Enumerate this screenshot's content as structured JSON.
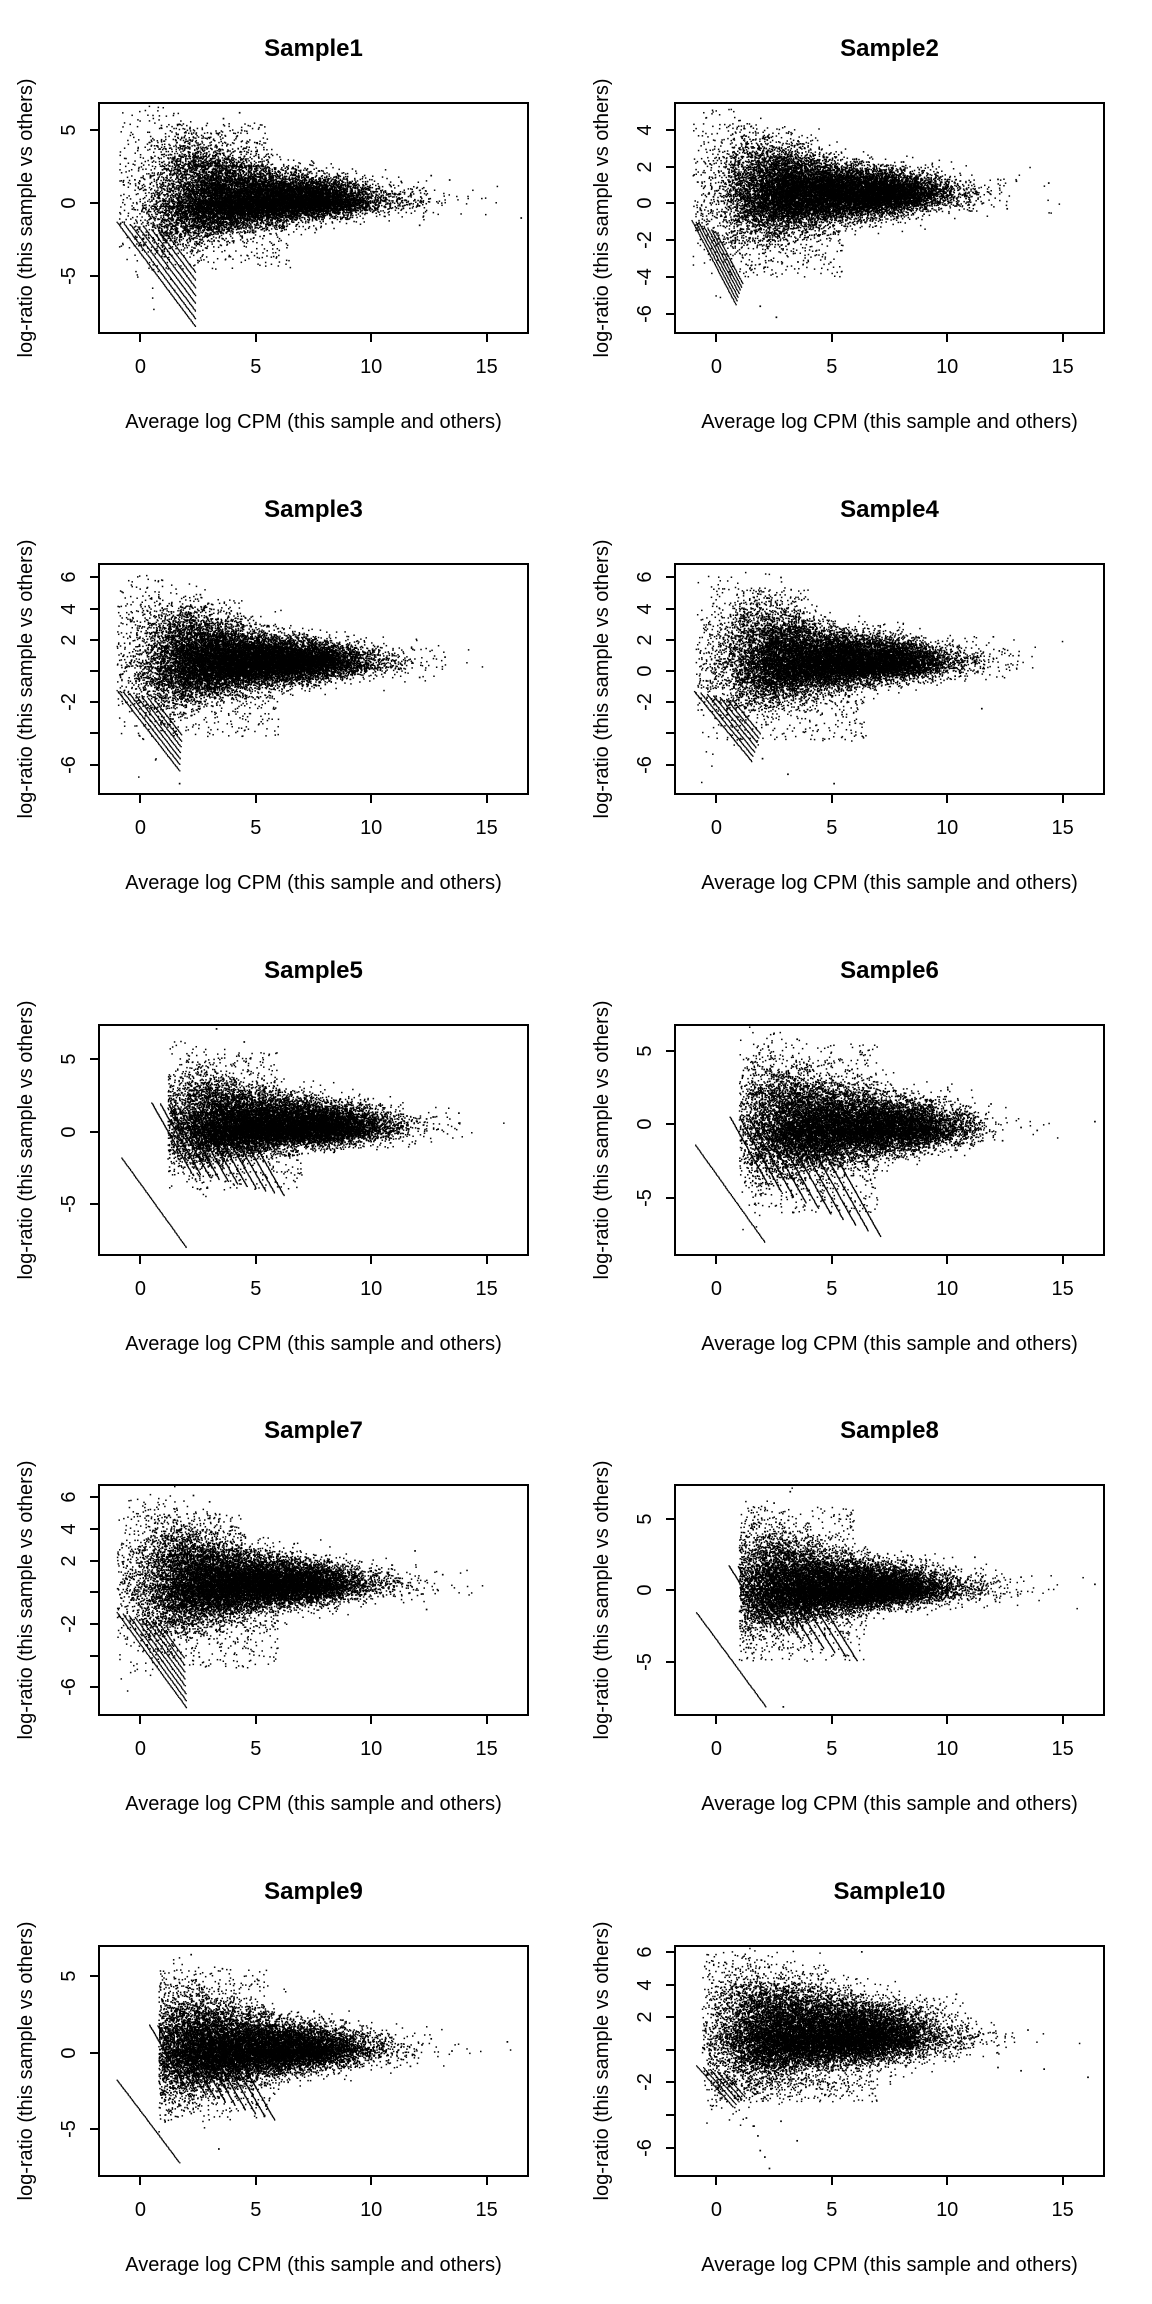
{
  "page": {
    "background": "#ffffff",
    "foreground": "#000000",
    "point_color": "#000000"
  },
  "shared": {
    "xlabel": "Average log CPM (this sample and others)",
    "ylabel": "log-ratio (this sample vs others)",
    "xticks": [
      0,
      5,
      10,
      15
    ],
    "xlim": [
      -1.75,
      16.75
    ]
  },
  "chart_data": [
    {
      "type": "scatter",
      "title": "Sample1",
      "xlabel": "Average log CPM (this sample and others)",
      "ylabel": "log-ratio (this sample vs others)",
      "xticks": [
        0,
        5,
        10,
        15
      ],
      "xlim": [
        -1.75,
        16.75
      ],
      "ylim": [
        -8.8,
        6.8
      ],
      "yticks": [
        {
          "v": 5,
          "label": "5"
        },
        {
          "v": 0,
          "label": "0"
        },
        {
          "v": -5,
          "label": "-5"
        }
      ],
      "cloud": {
        "seed": 11,
        "n": 15000,
        "xmean": 5.2,
        "center": 0.2,
        "sd0": 1.9,
        "sdscale": 3.3,
        "sdbase": 0.42,
        "upskew": 1.35,
        "xmin": -0.9,
        "xmax": 11.8,
        "tail_n": 80
      },
      "wing": [
        350,
        1.5,
        5.5,
        2.5,
        5.5
      ],
      "drop": [
        250,
        0.5,
        6.5,
        -1.5,
        -4.5
      ],
      "streaks": {
        "style": "fan",
        "n": 8,
        "x0": -1.0,
        "dx": 0.3,
        "y0": -1.3,
        "dy": -0.1,
        "slope": -2.1,
        "len0": 3.4,
        "dlen": -0.3,
        "step": 0.03
      },
      "outliers": [
        [
          13.4,
          1.6
        ],
        [
          12.6,
          1.9
        ],
        [
          16.5,
          -1.0
        ],
        [
          11.3,
          1.5
        ],
        [
          12.1,
          -1.5
        ],
        [
          4.3,
          6.2
        ],
        [
          3.6,
          5.8
        ],
        [
          12.5,
          0.3
        ]
      ]
    },
    {
      "type": "scatter",
      "title": "Sample2",
      "xlabel": "Average log CPM (this sample and others)",
      "ylabel": "log-ratio (this sample vs others)",
      "xticks": [
        0,
        5,
        10,
        15
      ],
      "xlim": [
        -1.75,
        16.75
      ],
      "ylim": [
        -7.0,
        5.4
      ],
      "yticks": [
        {
          "v": 4,
          "label": "4"
        },
        {
          "v": 2,
          "label": "2"
        },
        {
          "v": 0,
          "label": "0"
        },
        {
          "v": -2,
          "label": "-2"
        },
        {
          "v": -4,
          "label": "-4"
        },
        {
          "v": -6,
          "label": "-6"
        }
      ],
      "cloud": {
        "seed": 22,
        "n": 16000,
        "xmean": 5.0,
        "center": 0.55,
        "sd0": 1.5,
        "sdscale": 3.6,
        "sdbase": 0.38,
        "upskew": 1.1,
        "xmin": -1.0,
        "xmax": 11.0,
        "tail_n": 80
      },
      "wing": [
        150,
        1.0,
        4.5,
        2.0,
        4.2
      ],
      "drop": [
        220,
        0.3,
        5.5,
        -1.5,
        -4.0
      ],
      "streaks": {
        "style": "fan",
        "n": 7,
        "x0": -1.05,
        "dx": 0.17,
        "y0": -0.95,
        "dy": -0.1,
        "slope": -2.4,
        "len0": 1.9,
        "dlen": -0.12,
        "step": 0.025
      },
      "outliers": [
        [
          12.2,
          1.3
        ],
        [
          13.0,
          1.2
        ],
        [
          14.4,
          1.1
        ],
        [
          17.0,
          0.9
        ],
        [
          11.8,
          0.6
        ],
        [
          12.6,
          -0.3
        ],
        [
          2.6,
          -6.2
        ],
        [
          1.9,
          -5.6
        ]
      ]
    },
    {
      "type": "scatter",
      "title": "Sample3",
      "xlabel": "Average log CPM (this sample and others)",
      "ylabel": "log-ratio (this sample vs others)",
      "xticks": [
        0,
        5,
        10,
        15
      ],
      "xlim": [
        -1.75,
        16.75
      ],
      "ylim": [
        -7.8,
        6.8
      ],
      "yticks": [
        {
          "v": 6,
          "label": "6"
        },
        {
          "v": 4,
          "label": "4"
        },
        {
          "v": 2,
          "label": "2"
        },
        {
          "v": 0,
          "label": ""
        },
        {
          "v": -2,
          "label": "-2"
        },
        {
          "v": -4,
          "label": ""
        },
        {
          "v": -6,
          "label": "-6"
        }
      ],
      "cloud": {
        "seed": 33,
        "n": 16000,
        "xmean": 4.8,
        "center": 0.6,
        "sd0": 1.6,
        "sdscale": 3.5,
        "sdbase": 0.4,
        "upskew": 1.2,
        "xmin": -1.0,
        "xmax": 11.2,
        "tail_n": 70
      },
      "wing": [
        200,
        1.0,
        4.5,
        2.2,
        4.6
      ],
      "drop": [
        220,
        0.3,
        6.0,
        -1.5,
        -4.2
      ],
      "streaks": {
        "style": "fan",
        "n": 7,
        "x0": -1.0,
        "dx": 0.27,
        "y0": -1.25,
        "dy": -0.1,
        "slope": -1.9,
        "len0": 2.7,
        "dlen": -0.25,
        "step": 0.03
      },
      "outliers": [
        [
          13.2,
          0.9
        ],
        [
          16.8,
          1.1
        ],
        [
          12.1,
          -0.4
        ],
        [
          1.7,
          -7.2
        ],
        [
          11.8,
          1.4
        ],
        [
          2.6,
          4.9
        ]
      ]
    },
    {
      "type": "scatter",
      "title": "Sample4",
      "xlabel": "Average log CPM (this sample and others)",
      "ylabel": "log-ratio (this sample vs others)",
      "xticks": [
        0,
        5,
        10,
        15
      ],
      "xlim": [
        -1.75,
        16.75
      ],
      "ylim": [
        -7.8,
        6.8
      ],
      "yticks": [
        {
          "v": 6,
          "label": "6"
        },
        {
          "v": 4,
          "label": "4"
        },
        {
          "v": 2,
          "label": "2"
        },
        {
          "v": 0,
          "label": "0"
        },
        {
          "v": -2,
          "label": "-2"
        },
        {
          "v": -4,
          "label": ""
        },
        {
          "v": -6,
          "label": "-6"
        }
      ],
      "cloud": {
        "seed": 44,
        "n": 15000,
        "xmean": 5.0,
        "center": 0.6,
        "sd0": 1.7,
        "sdscale": 3.5,
        "sdbase": 0.42,
        "upskew": 1.25,
        "xmin": -0.9,
        "xmax": 11.4,
        "tail_n": 70
      },
      "wing": [
        220,
        1.0,
        4.0,
        2.5,
        5.2
      ],
      "drop": [
        260,
        0.4,
        6.5,
        -1.5,
        -4.5
      ],
      "streaks": {
        "style": "fan",
        "n": 7,
        "x0": -0.95,
        "dx": 0.28,
        "y0": -1.3,
        "dy": -0.1,
        "slope": -1.8,
        "len0": 2.5,
        "dlen": -0.22,
        "step": 0.03
      },
      "outliers": [
        [
          13.1,
          1.0
        ],
        [
          17.4,
          0.7
        ],
        [
          12.0,
          2.2
        ],
        [
          3.1,
          -6.6
        ],
        [
          5.1,
          -7.2
        ],
        [
          2.0,
          -5.6
        ],
        [
          2.8,
          6.0
        ],
        [
          11.5,
          -2.4
        ]
      ]
    },
    {
      "type": "scatter",
      "title": "Sample5",
      "xlabel": "Average log CPM (this sample and others)",
      "ylabel": "log-ratio (this sample vs others)",
      "xticks": [
        0,
        5,
        10,
        15
      ],
      "xlim": [
        -1.75,
        16.75
      ],
      "ylim": [
        -8.4,
        7.3
      ],
      "yticks": [
        {
          "v": 5,
          "label": "5"
        },
        {
          "v": 0,
          "label": "0"
        },
        {
          "v": -5,
          "label": "-5"
        }
      ],
      "cloud": {
        "seed": 55,
        "n": 15000,
        "xmean": 5.8,
        "center": 0.4,
        "sd0": 1.8,
        "sdscale": 3.8,
        "sdbase": 0.42,
        "upskew": 1.3,
        "xmin": 1.2,
        "xmax": 11.6,
        "tail_n": 80
      },
      "wing": [
        200,
        2.0,
        6.0,
        2.5,
        5.5
      ],
      "drop": [
        150,
        2.0,
        7.0,
        -1.5,
        -4.0
      ],
      "streaks": {
        "style": "comb",
        "n": 11,
        "x0": 0.5,
        "dx": 0.37,
        "y0": 2.0,
        "dy": -0.07,
        "slope": -2.8,
        "endy0": -2.8,
        "dendy": -0.16,
        "step": 0.055,
        "longline": {
          "x0": -0.8,
          "y0": -1.8,
          "slope": -2.2,
          "len": 2.8
        }
      },
      "outliers": [
        [
          13.8,
          1.3
        ],
        [
          17.5,
          1.5
        ],
        [
          12.4,
          0.9
        ],
        [
          3.3,
          7.1
        ],
        [
          4.5,
          6.2
        ],
        [
          11.9,
          -0.8
        ],
        [
          12.9,
          0.2
        ]
      ]
    },
    {
      "type": "scatter",
      "title": "Sample6",
      "xlabel": "Average log CPM (this sample and others)",
      "ylabel": "log-ratio (this sample vs others)",
      "xticks": [
        0,
        5,
        10,
        15
      ],
      "xlim": [
        -1.75,
        16.75
      ],
      "ylim": [
        -8.8,
        6.7
      ],
      "yticks": [
        {
          "v": 5,
          "label": "5"
        },
        {
          "v": 0,
          "label": "0"
        },
        {
          "v": -5,
          "label": "-5"
        }
      ],
      "cloud": {
        "seed": 66,
        "n": 14000,
        "xmean": 5.8,
        "center": -0.2,
        "sd0": 2.2,
        "sdscale": 4.2,
        "sdbase": 0.5,
        "upskew": 1.2,
        "xmin": 1.0,
        "xmax": 11.3,
        "tail_n": 70
      },
      "wing": [
        300,
        1.5,
        7.0,
        2.0,
        5.5
      ],
      "drop": [
        400,
        1.5,
        7.0,
        -2.0,
        -6.0
      ],
      "streaks": {
        "style": "comb",
        "n": 10,
        "x0": 0.6,
        "dx": 0.42,
        "y0": 0.5,
        "dy": -0.05,
        "slope": -2.8,
        "endy0": -4.2,
        "dendy": -0.38,
        "step": 0.055,
        "longline": {
          "x0": -0.9,
          "y0": -1.4,
          "slope": -2.2,
          "len": 3.0
        }
      },
      "outliers": [
        [
          13.9,
          -0.4
        ],
        [
          16.4,
          0.2
        ],
        [
          11.9,
          1.4
        ],
        [
          12.4,
          -1.1
        ],
        [
          2.5,
          6.2
        ],
        [
          3.5,
          5.8
        ],
        [
          13.2,
          -0.2
        ]
      ]
    },
    {
      "type": "scatter",
      "title": "Sample7",
      "xlabel": "Average log CPM (this sample and others)",
      "ylabel": "log-ratio (this sample vs others)",
      "xticks": [
        0,
        5,
        10,
        15
      ],
      "xlim": [
        -1.75,
        16.75
      ],
      "ylim": [
        -7.7,
        6.7
      ],
      "yticks": [
        {
          "v": 6,
          "label": "6"
        },
        {
          "v": 4,
          "label": "4"
        },
        {
          "v": 2,
          "label": "2"
        },
        {
          "v": 0,
          "label": ""
        },
        {
          "v": -2,
          "label": "-2"
        },
        {
          "v": -4,
          "label": ""
        },
        {
          "v": -6,
          "label": "-6"
        }
      ],
      "cloud": {
        "seed": 77,
        "n": 16000,
        "xmean": 4.6,
        "center": 0.5,
        "sd0": 1.7,
        "sdscale": 3.5,
        "sdbase": 0.4,
        "upskew": 1.2,
        "xmin": -1.0,
        "xmax": 11.2,
        "tail_n": 70
      },
      "wing": [
        220,
        1.0,
        4.5,
        2.2,
        5.0
      ],
      "drop": [
        260,
        0.4,
        6.0,
        -1.8,
        -4.8
      ],
      "streaks": {
        "style": "fan",
        "n": 8,
        "x0": -1.0,
        "dx": 0.26,
        "y0": -1.3,
        "dy": -0.1,
        "slope": -2.0,
        "len0": 3.0,
        "dlen": -0.27,
        "step": 0.03
      },
      "outliers": [
        [
          13.1,
          1.1
        ],
        [
          16.8,
          1.0
        ],
        [
          11.9,
          2.6
        ],
        [
          12.4,
          -1.1
        ],
        [
          2.3,
          6.1
        ],
        [
          3.0,
          5.7
        ],
        [
          12.9,
          0.1
        ]
      ]
    },
    {
      "type": "scatter",
      "title": "Sample8",
      "xlabel": "Average log CPM (this sample and others)",
      "ylabel": "log-ratio (this sample vs others)",
      "xticks": [
        0,
        5,
        10,
        15
      ],
      "xlim": [
        -1.75,
        16.75
      ],
      "ylim": [
        -8.7,
        7.3
      ],
      "yticks": [
        {
          "v": 5,
          "label": "5"
        },
        {
          "v": 0,
          "label": "0"
        },
        {
          "v": -5,
          "label": "-5"
        }
      ],
      "cloud": {
        "seed": 88,
        "n": 15000,
        "xmean": 5.2,
        "center": 0.15,
        "sd0": 1.8,
        "sdscale": 3.6,
        "sdbase": 0.42,
        "upskew": 1.3,
        "xmin": 1.0,
        "xmax": 11.6,
        "tail_n": 80
      },
      "wing": [
        250,
        1.5,
        6.0,
        2.5,
        5.8
      ],
      "drop": [
        260,
        1.0,
        6.5,
        -1.5,
        -5.0
      ],
      "streaks": {
        "style": "comb",
        "n": 9,
        "x0": 0.55,
        "dx": 0.4,
        "y0": 1.7,
        "dy": -0.07,
        "slope": -2.6,
        "endy0": -2.6,
        "dendy": -0.3,
        "step": 0.055,
        "longline": {
          "x0": -0.85,
          "y0": -1.6,
          "slope": -2.2,
          "len": 3.0
        }
      },
      "outliers": [
        [
          13.2,
          0.9
        ],
        [
          16.4,
          0.4
        ],
        [
          11.2,
          2.3
        ],
        [
          3.2,
          6.9
        ],
        [
          2.5,
          6.1
        ],
        [
          12.1,
          -0.8
        ],
        [
          2.9,
          -8.2
        ]
      ]
    },
    {
      "type": "scatter",
      "title": "Sample9",
      "xlabel": "Average log CPM (this sample and others)",
      "ylabel": "log-ratio (this sample vs others)",
      "xticks": [
        0,
        5,
        10,
        15
      ],
      "xlim": [
        -1.75,
        16.75
      ],
      "ylim": [
        -8.0,
        6.9
      ],
      "yticks": [
        {
          "v": 5,
          "label": "5"
        },
        {
          "v": 0,
          "label": "0"
        },
        {
          "v": -5,
          "label": "-5"
        }
      ],
      "cloud": {
        "seed": 99,
        "n": 15000,
        "xmean": 4.8,
        "center": 0.2,
        "sd0": 1.8,
        "sdscale": 3.6,
        "sdbase": 0.42,
        "upskew": 1.25,
        "xmin": 0.8,
        "xmax": 11.0,
        "tail_n": 80
      },
      "wing": [
        200,
        1.5,
        5.5,
        2.5,
        5.5
      ],
      "drop": [
        240,
        0.8,
        6.0,
        -1.5,
        -4.5
      ],
      "streaks": {
        "style": "comb",
        "n": 10,
        "x0": 0.4,
        "dx": 0.36,
        "y0": 1.8,
        "dy": -0.06,
        "slope": -2.6,
        "endy0": -2.3,
        "dendy": -0.24,
        "step": 0.055,
        "longline": {
          "x0": -1.0,
          "y0": -1.8,
          "slope": -2.0,
          "len": 2.7
        }
      },
      "outliers": [
        [
          12.6,
          0.9
        ],
        [
          15.9,
          0.7
        ],
        [
          13.5,
          0.1
        ],
        [
          11.7,
          -0.9
        ],
        [
          2.2,
          6.4
        ],
        [
          3.4,
          -6.3
        ],
        [
          12.2,
          0.5
        ]
      ]
    },
    {
      "type": "scatter",
      "title": "Sample10",
      "xlabel": "Average log CPM (this sample and others)",
      "ylabel": "log-ratio (this sample vs others)",
      "xticks": [
        0,
        5,
        10,
        15
      ],
      "xlim": [
        -1.75,
        16.75
      ],
      "ylim": [
        -7.7,
        6.3
      ],
      "yticks": [
        {
          "v": 6,
          "label": "6"
        },
        {
          "v": 4,
          "label": "4"
        },
        {
          "v": 2,
          "label": "2"
        },
        {
          "v": 0,
          "label": ""
        },
        {
          "v": -2,
          "label": "-2"
        },
        {
          "v": -4,
          "label": ""
        },
        {
          "v": -6,
          "label": "-6"
        }
      ],
      "cloud": {
        "seed": 110,
        "n": 16000,
        "xmean": 4.6,
        "center": 0.85,
        "sd0": 1.3,
        "sdscale": 4.5,
        "sdbase": 0.5,
        "upskew": 1.35,
        "xmin": -0.6,
        "xmax": 10.8,
        "tail_n": 90
      },
      "wing": [
        150,
        1.0,
        5.0,
        2.6,
        3.9
      ],
      "drop": [
        260,
        0.0,
        7.0,
        -1.8,
        -3.2
      ],
      "streaks": {
        "style": "fan",
        "n": 5,
        "x0": -0.85,
        "dx": 0.3,
        "y0": -1.0,
        "dy": -0.12,
        "slope": -1.6,
        "len0": 1.6,
        "dlen": -0.18,
        "step": 0.035
      },
      "outliers": [
        [
          13.5,
          1.2
        ],
        [
          16.1,
          -1.7
        ],
        [
          12.2,
          -1.1
        ],
        [
          13.2,
          -1.3
        ],
        [
          6.3,
          6.0
        ],
        [
          10.4,
          3.4
        ],
        [
          1.3,
          -4.2
        ],
        [
          1.6,
          -4.7
        ],
        [
          1.8,
          -5.3
        ],
        [
          1.9,
          -6.2
        ],
        [
          2.1,
          -6.6
        ],
        [
          2.3,
          -7.3
        ],
        [
          3.5,
          -5.6
        ],
        [
          2.8,
          -4.4
        ],
        [
          11.5,
          0.6
        ],
        [
          14.2,
          -1.2
        ]
      ]
    }
  ]
}
